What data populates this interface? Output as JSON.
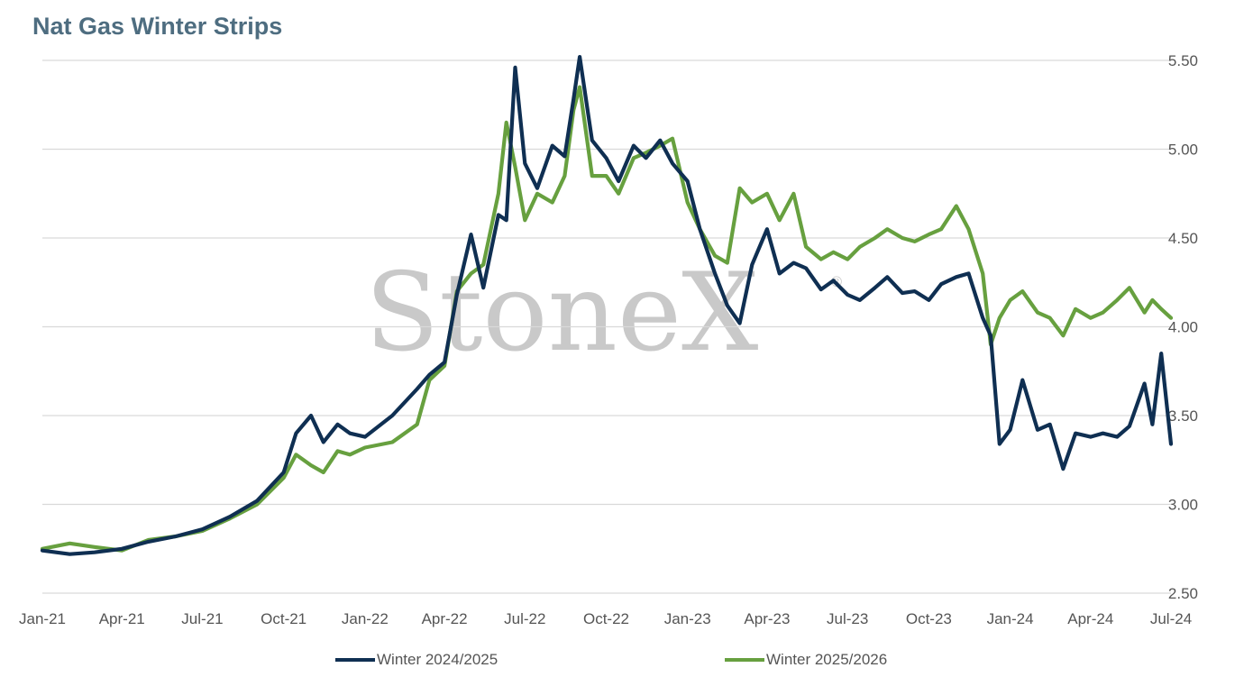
{
  "title": "Nat Gas Winter Strips",
  "watermark": "StoneX",
  "colors": {
    "series1": "#0f2f52",
    "series2": "#67a03f",
    "grid": "#d9d9d9",
    "text": "#555555"
  },
  "chart_data": {
    "type": "line",
    "title": "Nat Gas Winter Strips",
    "x_tick_labels": [
      "Jan-21",
      "Apr-21",
      "Jul-21",
      "Oct-21",
      "Jan-22",
      "Apr-22",
      "Jul-22",
      "Oct-22",
      "Jan-23",
      "Apr-23",
      "Jul-23",
      "Oct-23",
      "Jan-24",
      "Apr-24",
      "Jul-24"
    ],
    "y_tick_labels": [
      "5.50",
      "5.00",
      "4.50",
      "4.00",
      "3.50",
      "3.00",
      "2.50"
    ],
    "xlim": [
      "2021-01-01",
      "2024-07-01"
    ],
    "ylim": [
      2.5,
      5.5
    ],
    "y_axis_side": "right",
    "grid": "horizontal",
    "legend_position": "bottom",
    "series": [
      {
        "name": "Winter 2024/2025",
        "color": "#0f2f52",
        "x": [
          "2021-01-01",
          "2021-02-01",
          "2021-03-01",
          "2021-04-01",
          "2021-05-01",
          "2021-06-01",
          "2021-07-01",
          "2021-08-01",
          "2021-09-01",
          "2021-10-01",
          "2021-10-15",
          "2021-11-01",
          "2021-11-15",
          "2021-12-01",
          "2021-12-15",
          "2022-01-01",
          "2022-02-01",
          "2022-03-01",
          "2022-03-15",
          "2022-04-01",
          "2022-04-15",
          "2022-05-01",
          "2022-05-15",
          "2022-06-01",
          "2022-06-10",
          "2022-06-20",
          "2022-07-01",
          "2022-07-15",
          "2022-08-01",
          "2022-08-15",
          "2022-08-25",
          "2022-09-01",
          "2022-09-15",
          "2022-10-01",
          "2022-10-15",
          "2022-11-01",
          "2022-11-15",
          "2022-12-01",
          "2022-12-15",
          "2023-01-01",
          "2023-01-15",
          "2023-02-01",
          "2023-02-15",
          "2023-03-01",
          "2023-03-15",
          "2023-04-01",
          "2023-04-15",
          "2023-05-01",
          "2023-05-15",
          "2023-06-01",
          "2023-06-15",
          "2023-07-01",
          "2023-07-15",
          "2023-08-01",
          "2023-08-15",
          "2023-09-01",
          "2023-09-15",
          "2023-10-01",
          "2023-10-15",
          "2023-11-01",
          "2023-11-15",
          "2023-12-01",
          "2023-12-10",
          "2023-12-20",
          "2024-01-01",
          "2024-01-15",
          "2024-02-01",
          "2024-02-15",
          "2024-03-01",
          "2024-03-15",
          "2024-04-01",
          "2024-04-15",
          "2024-05-01",
          "2024-05-15",
          "2024-06-01",
          "2024-06-10",
          "2024-06-20",
          "2024-07-01"
        ],
        "y": [
          2.74,
          2.72,
          2.73,
          2.75,
          2.79,
          2.82,
          2.86,
          2.93,
          3.02,
          3.18,
          3.4,
          3.5,
          3.35,
          3.45,
          3.4,
          3.38,
          3.5,
          3.65,
          3.73,
          3.8,
          4.18,
          4.52,
          4.22,
          4.63,
          4.6,
          5.46,
          4.92,
          4.78,
          5.02,
          4.96,
          5.28,
          5.52,
          5.05,
          4.95,
          4.82,
          5.02,
          4.95,
          5.05,
          4.92,
          4.82,
          4.55,
          4.3,
          4.12,
          4.02,
          4.35,
          4.55,
          4.3,
          4.36,
          4.33,
          4.21,
          4.26,
          4.18,
          4.15,
          4.22,
          4.28,
          4.19,
          4.2,
          4.15,
          4.24,
          4.28,
          4.3,
          4.05,
          3.95,
          3.34,
          3.42,
          3.7,
          3.42,
          3.45,
          3.2,
          3.4,
          3.38,
          3.4,
          3.38,
          3.44,
          3.68,
          3.45,
          3.85,
          3.34
        ]
      },
      {
        "name": "Winter 2025/2026",
        "color": "#67a03f",
        "x": [
          "2021-01-01",
          "2021-02-01",
          "2021-03-01",
          "2021-04-01",
          "2021-05-01",
          "2021-06-01",
          "2021-07-01",
          "2021-08-01",
          "2021-09-01",
          "2021-10-01",
          "2021-10-15",
          "2021-11-01",
          "2021-11-15",
          "2021-12-01",
          "2021-12-15",
          "2022-01-01",
          "2022-02-01",
          "2022-03-01",
          "2022-03-15",
          "2022-04-01",
          "2022-04-15",
          "2022-05-01",
          "2022-05-15",
          "2022-06-01",
          "2022-06-10",
          "2022-06-20",
          "2022-07-01",
          "2022-07-15",
          "2022-08-01",
          "2022-08-15",
          "2022-08-25",
          "2022-09-01",
          "2022-09-15",
          "2022-10-01",
          "2022-10-15",
          "2022-11-01",
          "2022-11-15",
          "2022-12-01",
          "2022-12-15",
          "2023-01-01",
          "2023-01-15",
          "2023-02-01",
          "2023-02-15",
          "2023-03-01",
          "2023-03-15",
          "2023-04-01",
          "2023-04-15",
          "2023-05-01",
          "2023-05-15",
          "2023-06-01",
          "2023-06-15",
          "2023-07-01",
          "2023-07-15",
          "2023-08-01",
          "2023-08-15",
          "2023-09-01",
          "2023-09-15",
          "2023-10-01",
          "2023-10-15",
          "2023-11-01",
          "2023-11-15",
          "2023-12-01",
          "2023-12-10",
          "2023-12-20",
          "2024-01-01",
          "2024-01-15",
          "2024-02-01",
          "2024-02-15",
          "2024-03-01",
          "2024-03-15",
          "2024-04-01",
          "2024-04-15",
          "2024-05-01",
          "2024-05-15",
          "2024-06-01",
          "2024-06-10",
          "2024-06-20",
          "2024-07-01"
        ],
        "y": [
          2.75,
          2.78,
          2.76,
          2.74,
          2.8,
          2.82,
          2.85,
          2.92,
          3.0,
          3.15,
          3.28,
          3.22,
          3.18,
          3.3,
          3.28,
          3.32,
          3.35,
          3.45,
          3.7,
          3.78,
          4.2,
          4.3,
          4.35,
          4.75,
          5.15,
          4.9,
          4.6,
          4.75,
          4.7,
          4.85,
          5.22,
          5.35,
          4.85,
          4.85,
          4.75,
          4.95,
          4.98,
          5.02,
          5.06,
          4.7,
          4.55,
          4.4,
          4.36,
          4.78,
          4.7,
          4.75,
          4.6,
          4.75,
          4.45,
          4.38,
          4.42,
          4.38,
          4.45,
          4.5,
          4.55,
          4.5,
          4.48,
          4.52,
          4.55,
          4.68,
          4.55,
          4.3,
          3.9,
          4.05,
          4.15,
          4.2,
          4.08,
          4.05,
          3.95,
          4.1,
          4.05,
          4.08,
          4.15,
          4.22,
          4.08,
          4.15,
          4.1,
          4.05
        ]
      }
    ]
  }
}
